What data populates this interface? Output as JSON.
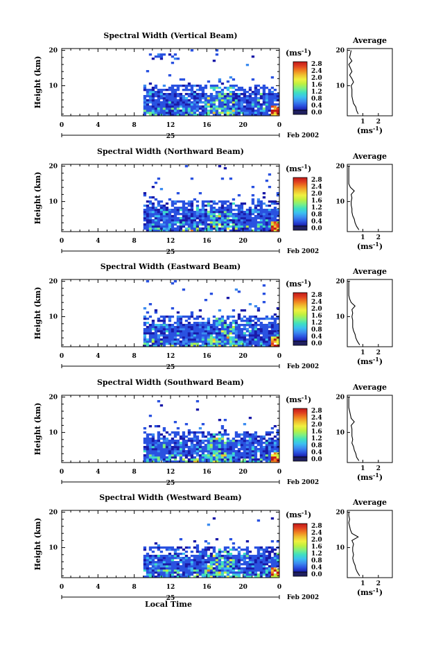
{
  "figure": {
    "xlabel": "Local Time",
    "date_label": "Feb 2002",
    "day_label": "25",
    "ylabel": "Height (km)",
    "colorbar_unit": "(ms",
    "colorbar_unit_exp": "-1",
    "colorbar_unit_close": ")",
    "avg_title": "Average",
    "avg_xunit": "(ms",
    "avg_xunit_exp": "-1",
    "avg_xunit_close": ")"
  },
  "chart_data": [
    {
      "type": "heatmap",
      "title": "Spectral Width (Vertical Beam)",
      "beam": "vertical",
      "xlabel": "Local Time",
      "ylabel": "Height (km)",
      "x_ticks": [
        "0",
        "4",
        "8",
        "12",
        "16",
        "20",
        "0"
      ],
      "xlim": [
        0,
        24
      ],
      "y_ticks": [
        "20",
        "10"
      ],
      "ylim": [
        1.5,
        20.5
      ],
      "colorbar": {
        "unit": "ms^-1",
        "ticks": [
          "2.8",
          "2.4",
          "2.0",
          "1.6",
          "1.2",
          "0.8",
          "0.4",
          "0.0"
        ],
        "range": [
          0,
          2.8
        ]
      },
      "data_start_hour": 9,
      "average_profile": {
        "title": "Average",
        "x_ticks": [
          "1",
          "2"
        ],
        "xlim": [
          0,
          2.9
        ],
        "heights": [
          2,
          3,
          4,
          5,
          6,
          7,
          8,
          9,
          10,
          11,
          12,
          13,
          14,
          15,
          16,
          17,
          18,
          19,
          20
        ],
        "values": [
          0.7,
          0.6,
          0.55,
          0.4,
          0.35,
          0.3,
          0.3,
          0.3,
          0.25,
          0.4,
          0.3,
          0.15,
          0.3,
          0.2,
          0.1,
          0.3,
          0.15,
          0.2,
          0.25
        ]
      }
    },
    {
      "type": "heatmap",
      "title": "Spectral Width (Northward Beam)",
      "beam": "northward",
      "xlabel": "Local Time",
      "ylabel": "Height (km)",
      "x_ticks": [
        "0",
        "4",
        "8",
        "12",
        "16",
        "20",
        "0"
      ],
      "xlim": [
        0,
        24
      ],
      "y_ticks": [
        "20",
        "10"
      ],
      "ylim": [
        1.5,
        20.5
      ],
      "colorbar": {
        "unit": "ms^-1",
        "ticks": [
          "2.8",
          "2.4",
          "2.0",
          "1.6",
          "1.2",
          "0.8",
          "0.4",
          "0.0"
        ],
        "range": [
          0,
          2.8
        ]
      },
      "data_start_hour": 9,
      "average_profile": {
        "title": "Average",
        "x_ticks": [
          "1",
          "2"
        ],
        "xlim": [
          0,
          2.9
        ],
        "heights": [
          2,
          3,
          4,
          5,
          6,
          7,
          8,
          9,
          10,
          11,
          12,
          13,
          14,
          15,
          16,
          17,
          18,
          19,
          20
        ],
        "values": [
          0.75,
          0.6,
          0.5,
          0.45,
          0.35,
          0.3,
          0.3,
          0.25,
          0.25,
          0.3,
          0.25,
          0.45,
          0.2,
          0.1,
          0.1,
          0.1,
          0.1,
          0.1,
          0.1
        ]
      }
    },
    {
      "type": "heatmap",
      "title": "Spectral Width (Eastward Beam)",
      "beam": "eastward",
      "xlabel": "Local Time",
      "ylabel": "Height (km)",
      "x_ticks": [
        "0",
        "4",
        "8",
        "12",
        "16",
        "20",
        "0"
      ],
      "xlim": [
        0,
        24
      ],
      "y_ticks": [
        "20",
        "10"
      ],
      "ylim": [
        1.5,
        20.5
      ],
      "colorbar": {
        "unit": "ms^-1",
        "ticks": [
          "2.8",
          "2.4",
          "2.0",
          "1.6",
          "1.2",
          "0.8",
          "0.4",
          "0.0"
        ],
        "range": [
          0,
          2.8
        ]
      },
      "data_start_hour": 9,
      "average_profile": {
        "title": "Average",
        "x_ticks": [
          "1",
          "2"
        ],
        "xlim": [
          0,
          2.9
        ],
        "heights": [
          2,
          3,
          4,
          5,
          6,
          7,
          8,
          9,
          10,
          11,
          12,
          13,
          14,
          15,
          16,
          17,
          18,
          19,
          20
        ],
        "values": [
          0.8,
          0.65,
          0.55,
          0.5,
          0.4,
          0.35,
          0.35,
          0.35,
          0.3,
          0.35,
          0.3,
          0.5,
          0.25,
          0.15,
          0.1,
          0.1,
          0.1,
          0.1,
          0.1
        ]
      }
    },
    {
      "type": "heatmap",
      "title": "Spectral Width (Southward Beam)",
      "beam": "southward",
      "xlabel": "Local Time",
      "ylabel": "Height (km)",
      "x_ticks": [
        "0",
        "4",
        "8",
        "12",
        "16",
        "20",
        "0"
      ],
      "xlim": [
        0,
        24
      ],
      "y_ticks": [
        "20",
        "10"
      ],
      "ylim": [
        1.5,
        20.5
      ],
      "colorbar": {
        "unit": "ms^-1",
        "ticks": [
          "2.8",
          "2.4",
          "2.0",
          "1.6",
          "1.2",
          "0.8",
          "0.4",
          "0.0"
        ],
        "range": [
          0,
          2.8
        ]
      },
      "data_start_hour": 9,
      "average_profile": {
        "title": "Average",
        "x_ticks": [
          "1",
          "2"
        ],
        "xlim": [
          0,
          2.9
        ],
        "heights": [
          2,
          3,
          4,
          5,
          6,
          7,
          8,
          9,
          10,
          11,
          12,
          13,
          14,
          15,
          16,
          17,
          18,
          19,
          20
        ],
        "values": [
          0.75,
          0.6,
          0.55,
          0.45,
          0.4,
          0.3,
          0.35,
          0.3,
          0.3,
          0.3,
          0.25,
          0.45,
          0.25,
          0.2,
          0.15,
          0.1,
          0.1,
          0.1,
          0.1
        ]
      }
    },
    {
      "type": "heatmap",
      "title": "Spectral Width (Westward Beam)",
      "beam": "westward",
      "xlabel": "Local Time",
      "ylabel": "Height (km)",
      "x_ticks": [
        "0",
        "4",
        "8",
        "12",
        "16",
        "20",
        "0"
      ],
      "xlim": [
        0,
        24
      ],
      "y_ticks": [
        "20",
        "10"
      ],
      "ylim": [
        1.5,
        20.5
      ],
      "colorbar": {
        "unit": "ms^-1",
        "ticks": [
          "2.8",
          "2.4",
          "2.0",
          "1.6",
          "1.2",
          "0.8",
          "0.4",
          "0.0"
        ],
        "range": [
          0,
          2.8
        ]
      },
      "data_start_hour": 9,
      "average_profile": {
        "title": "Average",
        "x_ticks": [
          "1",
          "2"
        ],
        "xlim": [
          0,
          2.9
        ],
        "heights": [
          2,
          3,
          4,
          5,
          6,
          7,
          8,
          9,
          10,
          11,
          12,
          13,
          14,
          15,
          16,
          17,
          18,
          19,
          20
        ],
        "values": [
          0.8,
          0.65,
          0.55,
          0.5,
          0.4,
          0.35,
          0.4,
          0.35,
          0.35,
          0.4,
          0.3,
          0.7,
          0.3,
          0.2,
          0.15,
          0.1,
          0.15,
          0.1,
          0.1
        ]
      }
    }
  ],
  "colormap": [
    "#202060",
    "#1a1aa8",
    "#2a52e0",
    "#3c8cf0",
    "#3cc0f0",
    "#40e0c0",
    "#80f080",
    "#c0f040",
    "#f0f040",
    "#f0c030",
    "#f08020",
    "#e04020",
    "#c01818"
  ]
}
